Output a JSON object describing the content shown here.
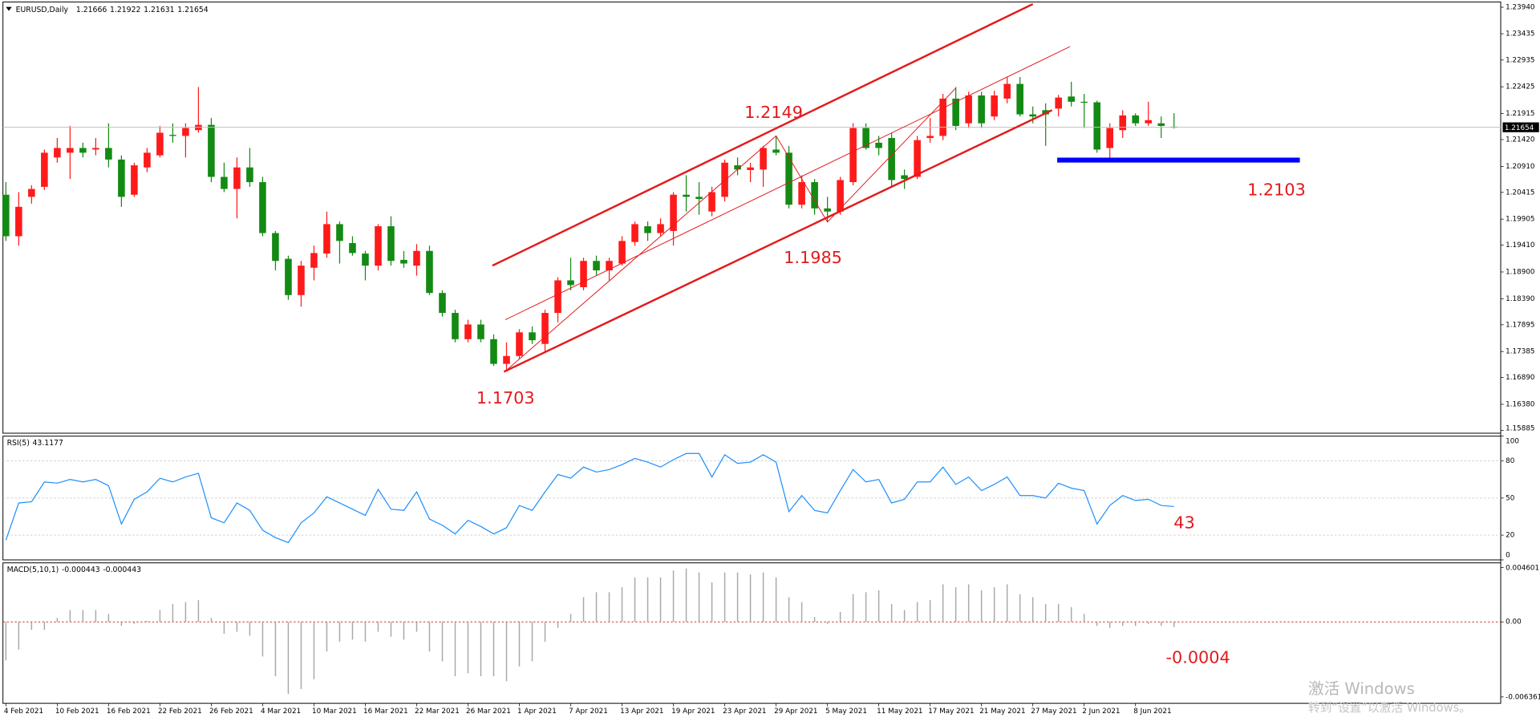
{
  "chart_data": [
    {
      "type": "candlestick",
      "title": "EURUSD,Daily",
      "categories": [
        "4 Feb 2021",
        null,
        null,
        null,
        "10 Feb 2021",
        null,
        null,
        null,
        "16 Feb 2021",
        null,
        null,
        null,
        "22 Feb 2021",
        null,
        null,
        null,
        "26 Feb 2021",
        null,
        null,
        null,
        "4 Mar 2021",
        null,
        null,
        null,
        "10 Mar 2021",
        null,
        null,
        null,
        "16 Mar 2021",
        null,
        null,
        null,
        "22 Mar 2021",
        null,
        null,
        null,
        "26 Mar 2021",
        null,
        null,
        null,
        "1 Apr 2021",
        null,
        null,
        null,
        "7 Apr 2021",
        null,
        null,
        null,
        "13 Apr 2021",
        null,
        null,
        null,
        "19 Apr 2021",
        null,
        null,
        null,
        "23 Apr 2021",
        null,
        null,
        null,
        "29 Apr 2021",
        null,
        null,
        null,
        "5 May 2021",
        null,
        null,
        null,
        "11 May 2021",
        null,
        null,
        null,
        "17 May 2021",
        null,
        null,
        null,
        "21 May 2021",
        null,
        null,
        null,
        "27 May 2021",
        null,
        null,
        null,
        "2 Jun 2021",
        null,
        null,
        null,
        "8 Jun 2021",
        null,
        null,
        null
      ],
      "open": [
        1.2037,
        1.1958,
        1.2033,
        1.2052,
        1.2108,
        1.2117,
        1.2126,
        1.2123,
        1.2126,
        1.2104,
        1.2037,
        1.2089,
        1.2112,
        1.2151,
        1.2149,
        1.216,
        1.217,
        1.2071,
        1.2048,
        1.2089,
        1.2061,
        1.1964,
        1.1915,
        1.1846,
        1.1898,
        1.1925,
        1.1981,
        1.1945,
        1.1925,
        1.1902,
        1.1977,
        1.1913,
        1.1902,
        1.193,
        1.185,
        1.1812,
        1.1762,
        1.179,
        1.1762,
        1.1715,
        1.173,
        1.1775,
        1.1753,
        1.1812,
        1.1874,
        1.1861,
        1.1911,
        1.1893,
        1.1906,
        1.1947,
        1.1977,
        1.1964,
        1.1968,
        1.2037,
        1.2033,
        1.2005,
        1.2033,
        1.2093,
        1.2084,
        1.2085,
        1.2123,
        1.2117,
        1.2018,
        1.2061,
        1.2011,
        1.2005,
        1.2061,
        1.2164,
        1.2136,
        1.2145,
        1.2074,
        1.2071,
        1.2145,
        1.2149,
        1.222,
        1.2173,
        1.2226,
        1.2186,
        1.222,
        1.2248,
        1.219,
        1.2198,
        1.2201,
        1.2224,
        1.2214,
        1.2213,
        1.2126,
        1.216,
        1.2188,
        1.2173,
        1.2173,
        1.21666
      ],
      "high": [
        1.2061,
        1.2042,
        1.2055,
        1.2123,
        1.2145,
        1.2168,
        1.2136,
        1.2145,
        1.2173,
        1.2112,
        1.2098,
        1.2126,
        1.2168,
        1.2173,
        1.2173,
        1.2242,
        1.2183,
        1.2098,
        1.2108,
        1.2126,
        1.2071,
        1.1968,
        1.1921,
        1.1911,
        1.194,
        1.2005,
        1.1986,
        1.1958,
        1.193,
        1.1981,
        1.1996,
        1.193,
        1.1943,
        1.194,
        1.1855,
        1.1818,
        1.1799,
        1.1799,
        1.1771,
        1.1756,
        1.1781,
        1.1786,
        1.1818,
        1.188,
        1.1917,
        1.1917,
        1.1921,
        1.1917,
        1.1958,
        1.1986,
        1.1986,
        1.1992,
        1.2042,
        1.2074,
        1.2061,
        1.2052,
        1.2104,
        1.2108,
        1.2098,
        1.213,
        1.2149,
        1.213,
        1.2074,
        1.2067,
        1.2033,
        1.2071,
        1.2173,
        1.2173,
        1.2149,
        1.2155,
        1.2085,
        1.2149,
        1.2183,
        1.2229,
        1.2242,
        1.2233,
        1.2233,
        1.2235,
        1.2261,
        1.2261,
        1.2205,
        1.2211,
        1.2227,
        1.2252,
        1.2229,
        1.2216,
        1.2173,
        1.2198,
        1.2192,
        1.2214,
        1.2186,
        1.21922
      ],
      "low": [
        1.1949,
        1.194,
        1.202,
        1.2046,
        1.2098,
        1.2067,
        1.2108,
        1.2112,
        1.2089,
        1.2014,
        1.2033,
        1.208,
        1.2108,
        1.2136,
        1.2108,
        1.2155,
        1.2061,
        1.2042,
        1.1992,
        1.2052,
        1.1958,
        1.1893,
        1.1837,
        1.1824,
        1.1874,
        1.1917,
        1.1906,
        1.1921,
        1.1874,
        1.1893,
        1.1902,
        1.1898,
        1.1883,
        1.1846,
        1.1805,
        1.1756,
        1.1756,
        1.1756,
        1.1711,
        1.1703,
        1.1724,
        1.1753,
        1.1738,
        1.1794,
        1.1855,
        1.1855,
        1.1883,
        1.1874,
        1.1902,
        1.194,
        1.1949,
        1.1958,
        1.194,
        1.2005,
        1.1999,
        1.1996,
        1.2024,
        1.2074,
        1.2061,
        1.2052,
        1.2112,
        1.2011,
        1.2011,
        1.1999,
        1.1985,
        1.1999,
        1.2055,
        1.2123,
        1.2112,
        1.2052,
        1.2048,
        1.2067,
        1.2136,
        1.2141,
        1.216,
        1.2164,
        1.2164,
        1.2179,
        1.2211,
        1.2186,
        1.2173,
        1.213,
        1.2186,
        1.2205,
        1.2164,
        1.2117,
        1.2103,
        1.2145,
        1.2168,
        1.2168,
        1.2145,
        1.21631
      ],
      "close": [
        1.1958,
        1.2014,
        1.2048,
        1.2117,
        1.2126,
        1.2126,
        1.2117,
        1.2126,
        1.2104,
        1.2033,
        1.2093,
        1.2117,
        1.2155,
        1.2149,
        1.2164,
        1.217,
        1.2071,
        1.2048,
        1.2089,
        1.2061,
        1.1964,
        1.1911,
        1.1846,
        1.1902,
        1.1926,
        1.1981,
        1.1949,
        1.1926,
        1.1902,
        1.1977,
        1.1911,
        1.1906,
        1.193,
        1.185,
        1.1812,
        1.1762,
        1.179,
        1.1762,
        1.1715,
        1.173,
        1.1775,
        1.176,
        1.1812,
        1.1874,
        1.1865,
        1.1911,
        1.1893,
        1.1911,
        1.1949,
        1.1981,
        1.1964,
        1.1981,
        1.2037,
        1.2033,
        1.2029,
        1.2042,
        1.2098,
        1.2085,
        1.2089,
        1.2126,
        1.2117,
        1.2018,
        1.2061,
        1.2011,
        1.2005,
        1.2065,
        1.2164,
        1.2126,
        1.2126,
        1.2065,
        1.2067,
        1.2141,
        1.2149,
        1.222,
        1.2168,
        1.2226,
        1.2173,
        1.2226,
        1.2248,
        1.219,
        1.2186,
        1.219,
        1.2222,
        1.2214,
        1.2213,
        1.2123,
        1.2164,
        1.2188,
        1.2173,
        1.2179,
        1.2168,
        1.21654
      ],
      "up_color": "#ff1a1a",
      "down_color": "#138a13",
      "ylim": [
        1.1583,
        1.2404
      ],
      "yticks": [
        {
          "value": 1.2394,
          "label": "1.23940"
        },
        1.23435,
        1.22935,
        1.22425,
        1.21915,
        {
          "value": 1.2142,
          "label": "1.21420"
        },
        {
          "value": 1.2091,
          "label": "1.20910"
        },
        1.20415,
        1.19905,
        {
          "value": 1.1941,
          "label": "1.19410"
        },
        {
          "value": 1.189,
          "label": "1.18900"
        },
        {
          "value": 1.1839,
          "label": "1.18390"
        },
        1.17895,
        1.17385,
        {
          "value": 1.1689,
          "label": "1.16890"
        },
        {
          "value": 1.1638,
          "label": "1.16380"
        },
        1.15885
      ],
      "current_price": 1.21654,
      "trendlines": [
        {
          "x": [
            37.9,
            80.0
          ],
          "y": [
            1.1902,
            1.24
          ],
          "color": "#e31a1c",
          "width": 2
        },
        {
          "x": [
            38.8,
            81.5
          ],
          "y": [
            1.17,
            1.2198
          ],
          "color": "#e31a1c",
          "width": 2
        },
        {
          "x": [
            38.9,
            82.9
          ],
          "y": [
            1.1799,
            1.2319
          ],
          "color": "#e31a1c",
          "width": 0.8
        },
        {
          "x": [
            39,
            60,
            64,
            74
          ],
          "y": [
            1.1703,
            1.2149,
            1.1985,
            1.224
          ],
          "color": "#e31a1c",
          "width": 0.8
        },
        {
          "x": [
            81.9,
            100.8
          ],
          "y": [
            1.2103,
            1.2103
          ],
          "color": "#0000ff",
          "width": 5
        }
      ],
      "annotations": [
        "1.2149",
        "1.1985",
        "1.1703",
        "1.2103"
      ]
    },
    {
      "type": "line",
      "title": "RSI(5)",
      "values": [
        16,
        46,
        47,
        63,
        62,
        65,
        63,
        65,
        60,
        29,
        49,
        55,
        66,
        63,
        67,
        70,
        34,
        30,
        46,
        40,
        24,
        18,
        14,
        30,
        38,
        51,
        46,
        41,
        36,
        57,
        41,
        40,
        55,
        33,
        28,
        21,
        32,
        27,
        21,
        26,
        44,
        40,
        55,
        69,
        66,
        75,
        71,
        73,
        77,
        82,
        79,
        75,
        81,
        86,
        86,
        67,
        85,
        78,
        79,
        85,
        79,
        39,
        52,
        40,
        38,
        56,
        73,
        63,
        65,
        46,
        49,
        63,
        63,
        75,
        61,
        67,
        56,
        61,
        67,
        52,
        52,
        50,
        62,
        58,
        56,
        29,
        44,
        52,
        48,
        49,
        44,
        43.1177
      ],
      "color": "#1e90ff",
      "ylim": [
        0,
        100
      ],
      "yticks": [
        0,
        20,
        50,
        80,
        100
      ],
      "levels": [
        20,
        50,
        80
      ],
      "level_color": "#c8c8c8",
      "annotations": [
        "43"
      ]
    },
    {
      "type": "bar",
      "title": "MACD(5,10,1)",
      "values": [
        -0.003264,
        -0.002344,
        -0.00067,
        -0.00067,
        0.000335,
        0.001004,
        0.001004,
        0.001004,
        0.00067,
        -0.000335,
        -0.000167,
        8.4e-05,
        0.001004,
        0.001507,
        0.001674,
        0.001841,
        0.000335,
        -0.001004,
        -0.000837,
        -0.001172,
        -0.00293,
        -0.004604,
        -0.00611,
        -0.005692,
        -0.004855,
        -0.002511,
        -0.001674,
        -0.001507,
        -0.001674,
        -0.000837,
        -0.001256,
        -0.001507,
        -0.000837,
        -0.002511,
        -0.003348,
        -0.004604,
        -0.004352,
        -0.004604,
        -0.004604,
        -0.005022,
        -0.003767,
        -0.003348,
        -0.001674,
        -0.000502,
        0.00067,
        0.002093,
        0.002511,
        0.002511,
        0.00293,
        0.003767,
        0.003767,
        0.003767,
        0.004352,
        0.00452,
        0.004185,
        0.003348,
        0.004185,
        0.004185,
        0.004018,
        0.004185,
        0.003767,
        0.002093,
        0.001674,
        0.000419,
        -0.000167,
        0.000837,
        0.002344,
        0.002511,
        0.002678,
        0.001507,
        0.001004,
        0.001674,
        0.001841,
        0.003181,
        0.00293,
        0.003181,
        0.002678,
        0.00293,
        0.003181,
        0.002344,
        0.002093,
        0.001507,
        0.001507,
        0.001256,
        0.00067,
        -0.000335,
        -0.000502,
        -0.000335,
        -0.000335,
        -0.000167,
        -0.000335,
        -0.000443
      ],
      "color": "#a8a8a8",
      "ylim": [
        -0.0069,
        0.005
      ],
      "yticks": [
        0.004601,
        {
          "value": 0,
          "label": "0.00"
        },
        -0.006361
      ],
      "levels": [
        0
      ],
      "level_color": "#d01010",
      "annotations": [
        "-0.0004"
      ]
    }
  ],
  "watermark": [
    "激活 Windows",
    "转到“设置”以激活 Windows。"
  ]
}
